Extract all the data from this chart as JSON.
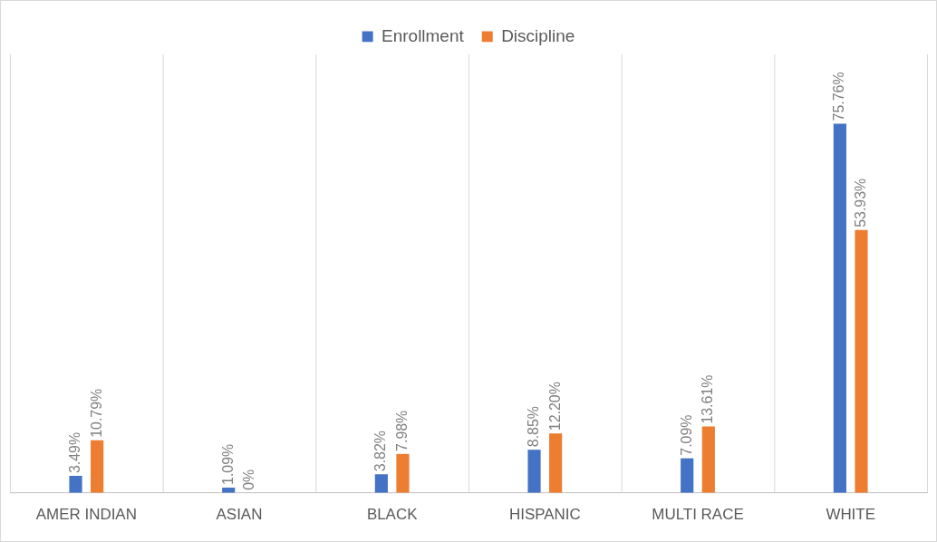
{
  "chart_data": {
    "type": "bar",
    "categories": [
      "AMER INDIAN",
      "ASIAN",
      "BLACK",
      "HISPANIC",
      "MULTI RACE",
      "WHITE"
    ],
    "series": [
      {
        "name": "Enrollment",
        "color": "#4472c4",
        "values": [
          3.49,
          1.09,
          3.82,
          8.85,
          7.09,
          75.76
        ],
        "value_labels": [
          "3.49%",
          "1.09%",
          "3.82%",
          "8.85%",
          "7.09%",
          "75.76%"
        ]
      },
      {
        "name": "Discipline",
        "color": "#ed7d31",
        "values": [
          10.79,
          0,
          7.98,
          12.2,
          13.61,
          53.93
        ],
        "value_labels": [
          "10.79%",
          "0%",
          "7.98%",
          "12.20%",
          "13.61%",
          "53.93%"
        ]
      }
    ],
    "legend": "top",
    "grid": "x"
  }
}
